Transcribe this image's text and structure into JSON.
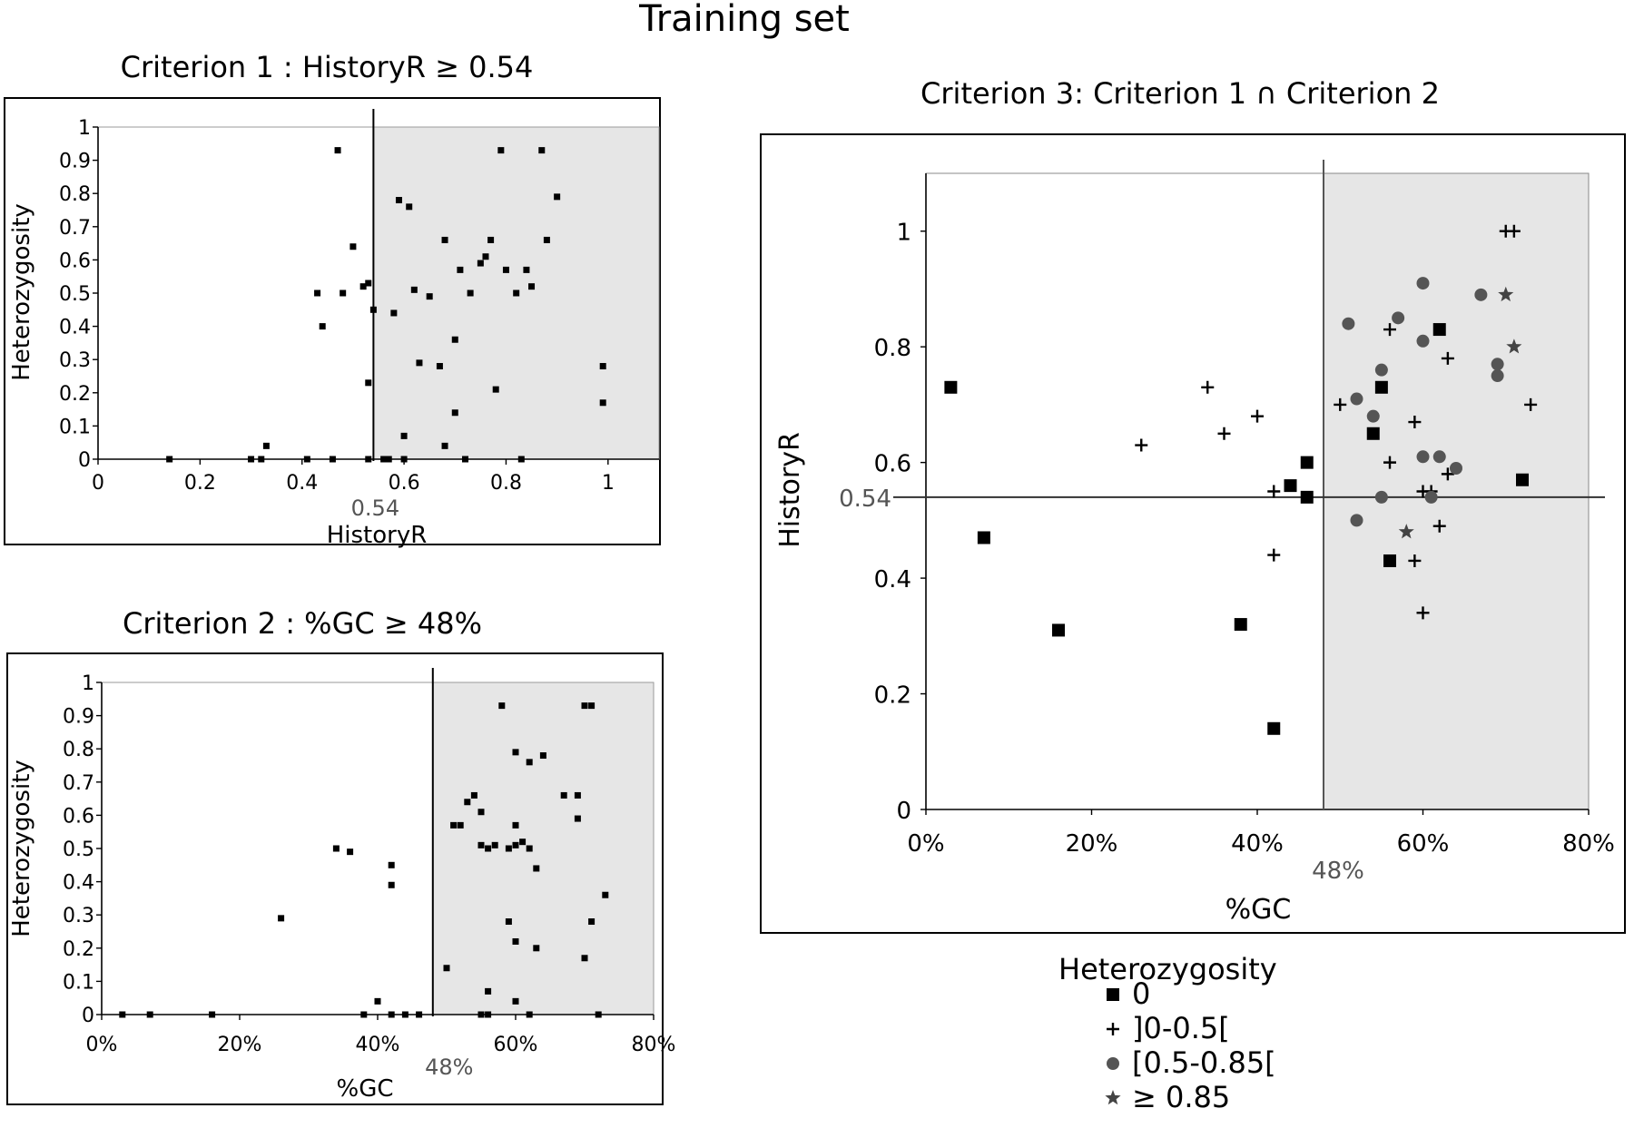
{
  "figure_title": "Training set",
  "legend": {
    "title": "Heterozygosity",
    "items": [
      {
        "symbol": "square",
        "label": "0"
      },
      {
        "symbol": "plus",
        "label": "]0-0.5["
      },
      {
        "symbol": "circle",
        "label": "[0.5-0.85["
      },
      {
        "symbol": "star",
        "label": "≥ 0.85"
      }
    ]
  },
  "chart_data": [
    {
      "type": "scatter",
      "title": "Criterion 1 : HistoryR ≥ 0.54",
      "xlabel": "HistoryR",
      "ylabel": "Heterozygosity",
      "xlim": [
        0,
        1.1
      ],
      "ylim": [
        0,
        1
      ],
      "x_ticks": [
        "0",
        "0.2",
        "0.4",
        "0.6",
        "0.8",
        "1"
      ],
      "y_ticks": [
        "0",
        "0.1",
        "0.2",
        "0.3",
        "0.4",
        "0.5",
        "0.6",
        "0.7",
        "0.8",
        "0.9",
        "1"
      ],
      "threshold": {
        "axis": "x",
        "value": 0.54,
        "label": "0.54"
      },
      "shaded_region": "x >= 0.54",
      "grid": false,
      "points": [
        [
          0.14,
          0
        ],
        [
          0.3,
          0
        ],
        [
          0.32,
          0
        ],
        [
          0.33,
          0.04
        ],
        [
          0.41,
          0
        ],
        [
          0.43,
          0.5
        ],
        [
          0.44,
          0.4
        ],
        [
          0.46,
          0
        ],
        [
          0.47,
          0.93
        ],
        [
          0.48,
          0.5
        ],
        [
          0.5,
          0.64
        ],
        [
          0.52,
          0.52
        ],
        [
          0.53,
          0.53
        ],
        [
          0.53,
          0
        ],
        [
          0.53,
          0.23
        ],
        [
          0.54,
          0.45
        ],
        [
          0.56,
          0
        ],
        [
          0.57,
          0
        ],
        [
          0.58,
          0.44
        ],
        [
          0.59,
          0.78
        ],
        [
          0.6,
          0.07
        ],
        [
          0.6,
          0
        ],
        [
          0.61,
          0.76
        ],
        [
          0.62,
          0.51
        ],
        [
          0.63,
          0.29
        ],
        [
          0.65,
          0.49
        ],
        [
          0.67,
          0.28
        ],
        [
          0.68,
          0.66
        ],
        [
          0.68,
          0.04
        ],
        [
          0.7,
          0.36
        ],
        [
          0.7,
          0.14
        ],
        [
          0.71,
          0.57
        ],
        [
          0.72,
          0
        ],
        [
          0.73,
          0.5
        ],
        [
          0.75,
          0.59
        ],
        [
          0.76,
          0.61
        ],
        [
          0.77,
          0.66
        ],
        [
          0.78,
          0.21
        ],
        [
          0.79,
          0.93
        ],
        [
          0.8,
          0.57
        ],
        [
          0.82,
          0.5
        ],
        [
          0.83,
          0
        ],
        [
          0.84,
          0.57
        ],
        [
          0.85,
          0.52
        ],
        [
          0.87,
          0.93
        ],
        [
          0.88,
          0.66
        ],
        [
          0.9,
          0.79
        ],
        [
          0.99,
          0.28
        ],
        [
          0.99,
          0.17
        ]
      ]
    },
    {
      "type": "scatter",
      "title": "Criterion 2 : %GC ≥ 48%",
      "xlabel": "%GC",
      "ylabel": "Heterozygosity",
      "xlim": [
        0,
        0.8
      ],
      "ylim": [
        0,
        1
      ],
      "x_ticks": [
        "0%",
        "20%",
        "40%",
        "60%",
        "80%"
      ],
      "y_ticks": [
        "0",
        "0.1",
        "0.2",
        "0.3",
        "0.4",
        "0.5",
        "0.6",
        "0.7",
        "0.8",
        "0.9",
        "1"
      ],
      "threshold": {
        "axis": "x",
        "value": 0.48,
        "label": "48%"
      },
      "shaded_region": "x >= 0.48",
      "grid": false,
      "points": [
        [
          0.03,
          0
        ],
        [
          0.07,
          0
        ],
        [
          0.16,
          0
        ],
        [
          0.26,
          0.29
        ],
        [
          0.34,
          0.5
        ],
        [
          0.36,
          0.49
        ],
        [
          0.38,
          0
        ],
        [
          0.4,
          0.04
        ],
        [
          0.42,
          0.45
        ],
        [
          0.42,
          0.39
        ],
        [
          0.42,
          0
        ],
        [
          0.44,
          0
        ],
        [
          0.46,
          0
        ],
        [
          0.5,
          0.14
        ],
        [
          0.51,
          0.57
        ],
        [
          0.52,
          0.57
        ],
        [
          0.53,
          0.64
        ],
        [
          0.54,
          0.66
        ],
        [
          0.55,
          0.61
        ],
        [
          0.55,
          0.51
        ],
        [
          0.56,
          0.5
        ],
        [
          0.56,
          0.07
        ],
        [
          0.55,
          0
        ],
        [
          0.56,
          0
        ],
        [
          0.57,
          0.51
        ],
        [
          0.58,
          0.93
        ],
        [
          0.59,
          0.5
        ],
        [
          0.59,
          0.28
        ],
        [
          0.6,
          0.79
        ],
        [
          0.6,
          0.57
        ],
        [
          0.6,
          0.51
        ],
        [
          0.6,
          0.04
        ],
        [
          0.6,
          0.22
        ],
        [
          0.61,
          0.52
        ],
        [
          0.62,
          0.76
        ],
        [
          0.62,
          0.5
        ],
        [
          0.62,
          0
        ],
        [
          0.63,
          0.44
        ],
        [
          0.63,
          0.2
        ],
        [
          0.64,
          0.78
        ],
        [
          0.67,
          0.66
        ],
        [
          0.69,
          0.66
        ],
        [
          0.69,
          0.59
        ],
        [
          0.7,
          0.93
        ],
        [
          0.71,
          0.93
        ],
        [
          0.7,
          0.17
        ],
        [
          0.71,
          0.28
        ],
        [
          0.72,
          0
        ],
        [
          0.73,
          0.36
        ]
      ]
    },
    {
      "type": "scatter",
      "title": "Criterion 3: Criterion 1 ∩ Criterion 2",
      "xlabel": "%GC",
      "ylabel": "HistoryR",
      "xlim": [
        0,
        0.8
      ],
      "ylim": [
        0,
        1.1
      ],
      "x_ticks": [
        "0%",
        "20%",
        "40%",
        "60%",
        "80%"
      ],
      "y_ticks": [
        "0",
        "0.2",
        "0.4",
        "0.6",
        "0.8",
        "1"
      ],
      "threshold_x": {
        "value": 0.48,
        "label": "48%"
      },
      "threshold_y": {
        "value": 0.54,
        "label": "0.54"
      },
      "shaded_region": "x >= 0.48",
      "grid": false,
      "series": [
        {
          "name": "0",
          "marker": "square",
          "points": [
            [
              0.03,
              0.73
            ],
            [
              0.07,
              0.47
            ],
            [
              0.16,
              0.31
            ],
            [
              0.38,
              0.32
            ],
            [
              0.42,
              0.14
            ],
            [
              0.44,
              0.56
            ],
            [
              0.46,
              0.54
            ],
            [
              0.46,
              0.6
            ],
            [
              0.54,
              0.65
            ],
            [
              0.55,
              0.73
            ],
            [
              0.56,
              0.43
            ],
            [
              0.62,
              0.83
            ],
            [
              0.72,
              0.57
            ]
          ]
        },
        {
          "name": "]0-0.5[",
          "marker": "plus",
          "points": [
            [
              0.26,
              0.63
            ],
            [
              0.34,
              0.73
            ],
            [
              0.36,
              0.65
            ],
            [
              0.4,
              0.68
            ],
            [
              0.42,
              0.55
            ],
            [
              0.42,
              0.44
            ],
            [
              0.5,
              0.7
            ],
            [
              0.56,
              0.6
            ],
            [
              0.56,
              0.83
            ],
            [
              0.59,
              0.67
            ],
            [
              0.59,
              0.43
            ],
            [
              0.6,
              0.55
            ],
            [
              0.6,
              0.34
            ],
            [
              0.61,
              0.55
            ],
            [
              0.62,
              0.49
            ],
            [
              0.63,
              0.58
            ],
            [
              0.63,
              0.78
            ],
            [
              0.7,
              1.0
            ],
            [
              0.71,
              1.0
            ],
            [
              0.73,
              0.7
            ]
          ]
        },
        {
          "name": "[0.5-0.85[",
          "marker": "circle",
          "points": [
            [
              0.51,
              0.84
            ],
            [
              0.52,
              0.71
            ],
            [
              0.52,
              0.5
            ],
            [
              0.54,
              0.68
            ],
            [
              0.55,
              0.54
            ],
            [
              0.55,
              0.76
            ],
            [
              0.57,
              0.85
            ],
            [
              0.6,
              0.81
            ],
            [
              0.6,
              0.91
            ],
            [
              0.6,
              0.61
            ],
            [
              0.61,
              0.54
            ],
            [
              0.62,
              0.61
            ],
            [
              0.64,
              0.59
            ],
            [
              0.67,
              0.89
            ],
            [
              0.69,
              0.75
            ],
            [
              0.69,
              0.77
            ]
          ]
        },
        {
          "name": "≥ 0.85",
          "marker": "star",
          "points": [
            [
              0.58,
              0.48
            ],
            [
              0.7,
              0.89
            ],
            [
              0.71,
              0.8
            ]
          ]
        }
      ]
    }
  ]
}
